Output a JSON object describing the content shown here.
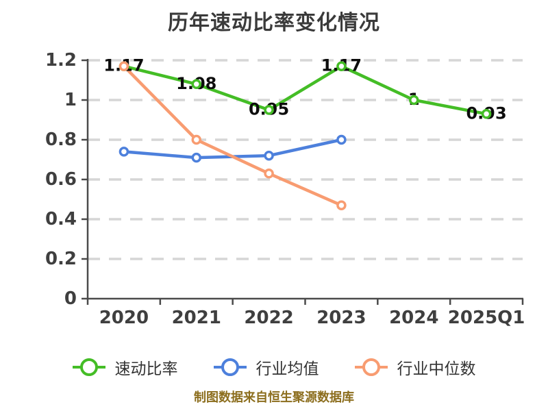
{
  "title": "历年速动比率变化情况",
  "caption": "制图数据来自恒生聚源数据库",
  "colors": {
    "quick_ratio": "#44bd26",
    "industry_avg": "#4d80dc",
    "industry_median": "#f89c71",
    "grid_line": "#d6d6d6",
    "axis_line": "#4a4a4a",
    "axis_text": "#3f3f3f",
    "data_label_text": "#0d0d0d",
    "point_fill": "#ffffff",
    "title_text": "#3a3a3a",
    "legend_text": "#333333",
    "caption_text": "#8c6e1e",
    "background": "#ffffff"
  },
  "legend": {
    "items": [
      {
        "label": "速动比率",
        "color": "#44bd26"
      },
      {
        "label": "行业均值",
        "color": "#4d80dc"
      },
      {
        "label": "行业中位数",
        "color": "#f89c71"
      }
    ]
  },
  "chart_data": {
    "type": "line",
    "title": "历年速动比率变化情况",
    "xlabel": "",
    "ylabel": "",
    "categories": [
      "2020",
      "2021",
      "2022",
      "2023",
      "2024",
      "2025Q1"
    ],
    "series": [
      {
        "name": "速动比率",
        "color": "#44bd26",
        "values": [
          1.17,
          1.08,
          0.95,
          1.17,
          1,
          0.93
        ],
        "point_labels": [
          "1.17",
          "1.08",
          "0.95",
          "1.17",
          "1",
          "0.93"
        ],
        "show_labels": true
      },
      {
        "name": "行业均值",
        "color": "#4d80dc",
        "values": [
          0.74,
          0.71,
          0.72,
          0.8,
          null,
          null
        ],
        "show_labels": false
      },
      {
        "name": "行业中位数",
        "color": "#f89c71",
        "values": [
          1.17,
          0.8,
          0.63,
          0.47,
          null,
          null
        ],
        "show_labels": false
      }
    ],
    "ylim": [
      0,
      1.2
    ],
    "yticks": [
      0,
      0.2,
      0.4,
      0.6,
      0.8,
      1,
      1.2
    ],
    "ytick_labels": [
      "0",
      "0.2",
      "0.4",
      "0.6",
      "0.8",
      "1",
      "1.2"
    ],
    "grid": true,
    "grid_style": "dashed",
    "legend_position": "bottom",
    "source_note": "制图数据来自恒生聚源数据库"
  }
}
